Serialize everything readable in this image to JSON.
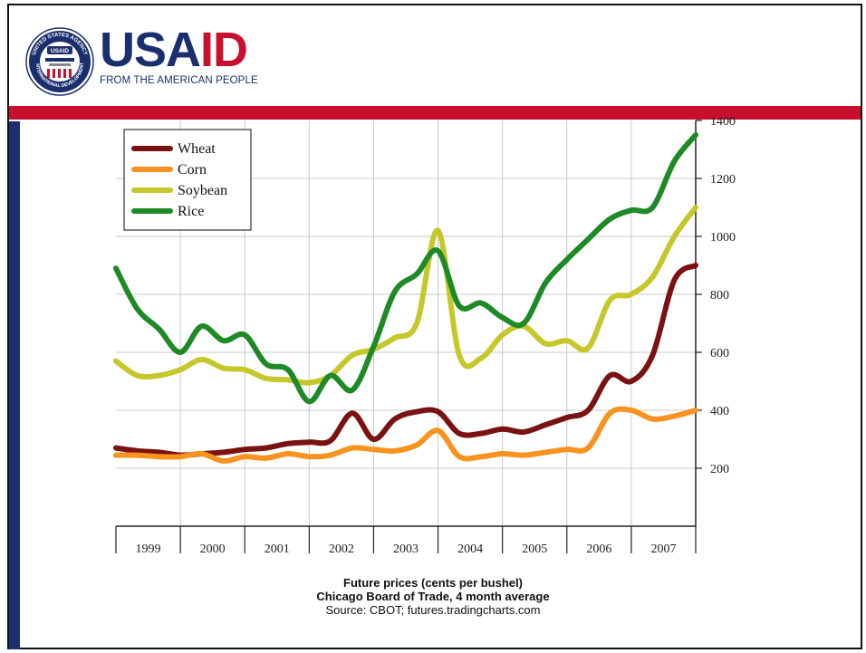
{
  "header": {
    "logo_wordmark_part1": "USA",
    "logo_wordmark_part2": "ID",
    "logo_tagline": "FROM THE AMERICAN PEOPLE",
    "seal_top_text": "UNITED STATES AGENCY",
    "seal_bottom_text": "INTERNATIONAL DEVELOPMENT",
    "seal_badge": "USAID"
  },
  "colors": {
    "navy": "#1b2f6e",
    "red": "#c8102e",
    "wheat": "#7a1212",
    "corn": "#f7931e",
    "soybean": "#c5c72a",
    "rice": "#1e8a26"
  },
  "caption": {
    "line1": "Future prices (cents per bushel)",
    "line2": "Chicago Board of Trade, 4 month average",
    "line3": "Source: CBOT; futures.tradingcharts.com"
  },
  "chart_data": {
    "type": "line",
    "title": "",
    "xlabel": "",
    "ylabel": "",
    "x_tick_labels": [
      "1999",
      "2000",
      "2001",
      "2002",
      "2003",
      "2004",
      "2005",
      "2006",
      "2007"
    ],
    "y_ticks": [
      200,
      400,
      600,
      800,
      1000,
      1200,
      1400
    ],
    "xlim": [
      1999,
      2008
    ],
    "ylim": [
      0,
      1400
    ],
    "grid": true,
    "legend_position": "top-left",
    "x": [
      1999.0,
      1999.33,
      1999.67,
      2000.0,
      2000.33,
      2000.67,
      2001.0,
      2001.33,
      2001.67,
      2002.0,
      2002.33,
      2002.67,
      2003.0,
      2003.33,
      2003.67,
      2004.0,
      2004.33,
      2004.67,
      2005.0,
      2005.33,
      2005.67,
      2006.0,
      2006.33,
      2006.67,
      2007.0,
      2007.33,
      2007.67,
      2008.0
    ],
    "series": [
      {
        "name": "Wheat",
        "color": "#7a1212",
        "values": [
          270,
          260,
          255,
          245,
          250,
          255,
          265,
          270,
          285,
          290,
          295,
          390,
          300,
          370,
          395,
          395,
          320,
          320,
          335,
          325,
          350,
          375,
          400,
          520,
          500,
          590,
          850,
          900
        ]
      },
      {
        "name": "Corn",
        "color": "#f7931e",
        "values": [
          245,
          245,
          240,
          240,
          250,
          225,
          240,
          235,
          250,
          240,
          245,
          270,
          265,
          260,
          280,
          330,
          240,
          240,
          250,
          245,
          255,
          265,
          270,
          390,
          400,
          370,
          380,
          400
        ]
      },
      {
        "name": "Soybean",
        "color": "#c5c72a",
        "values": [
          570,
          520,
          520,
          540,
          575,
          545,
          540,
          510,
          505,
          495,
          520,
          590,
          610,
          650,
          700,
          1020,
          590,
          580,
          660,
          690,
          630,
          640,
          615,
          780,
          800,
          860,
          1000,
          1100
        ]
      },
      {
        "name": "Rice",
        "color": "#1e8a26",
        "values": [
          890,
          750,
          680,
          600,
          690,
          640,
          660,
          560,
          540,
          430,
          520,
          470,
          620,
          810,
          870,
          950,
          760,
          770,
          720,
          700,
          840,
          920,
          990,
          1060,
          1090,
          1100,
          1260,
          1350
        ]
      }
    ]
  }
}
